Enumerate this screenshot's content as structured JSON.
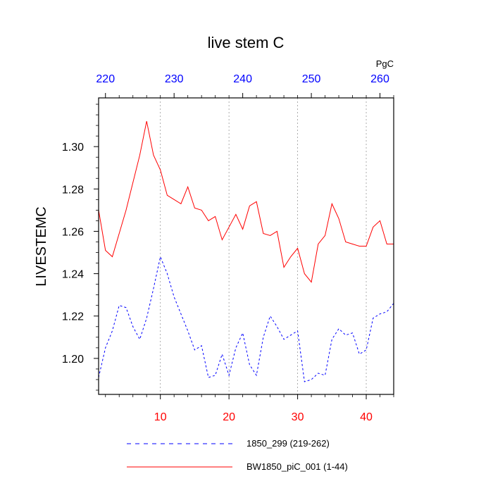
{
  "chart_data": {
    "type": "line",
    "title": "live stem C",
    "ylabel": "LIVESTEMC",
    "units": "PgC",
    "xlim": [
      1,
      44
    ],
    "ylim": [
      1.183,
      1.323
    ],
    "yticks": [
      1.2,
      1.22,
      1.24,
      1.26,
      1.28,
      1.3
    ],
    "ytick_labels": [
      "1.20",
      "1.22",
      "1.24",
      "1.26",
      "1.28",
      "1.30"
    ],
    "bottom_xticks": [
      10,
      20,
      30,
      40
    ],
    "bottom_xtick_labels": [
      "10",
      "20",
      "30",
      "40"
    ],
    "bottom_axis_color": "#ff0000",
    "top_axis_offset": 218,
    "top_xticks": [
      220,
      230,
      240,
      250,
      260
    ],
    "top_xtick_labels": [
      "220",
      "230",
      "240",
      "250",
      "260"
    ],
    "top_axis_color": "#0000ff",
    "series": [
      {
        "name": "1850_299 (219-262)",
        "color": "#0000ff",
        "dash": "dashed",
        "x": [
          1,
          2,
          3,
          4,
          5,
          6,
          7,
          8,
          9,
          10,
          11,
          12,
          13,
          14,
          15,
          16,
          17,
          18,
          19,
          20,
          21,
          22,
          23,
          24,
          25,
          26,
          27,
          28,
          29,
          30,
          31,
          32,
          33,
          34,
          35,
          36,
          37,
          38,
          39,
          40,
          41,
          42,
          43,
          44
        ],
        "values": [
          1.191,
          1.205,
          1.213,
          1.225,
          1.224,
          1.215,
          1.209,
          1.219,
          1.233,
          1.248,
          1.24,
          1.229,
          1.221,
          1.213,
          1.204,
          1.206,
          1.191,
          1.192,
          1.202,
          1.192,
          1.205,
          1.212,
          1.197,
          1.192,
          1.21,
          1.22,
          1.215,
          1.209,
          1.211,
          1.213,
          1.189,
          1.19,
          1.193,
          1.192,
          1.209,
          1.214,
          1.211,
          1.212,
          1.202,
          1.204,
          1.219,
          1.221,
          1.222,
          1.226
        ]
      },
      {
        "name": "BW1850_piC_001 (1-44)",
        "color": "#ff0000",
        "dash": "solid",
        "x": [
          1,
          2,
          3,
          4,
          5,
          6,
          7,
          8,
          9,
          10,
          11,
          12,
          13,
          14,
          15,
          16,
          17,
          18,
          19,
          20,
          21,
          22,
          23,
          24,
          25,
          26,
          27,
          28,
          29,
          30,
          31,
          32,
          33,
          34,
          35,
          36,
          37,
          38,
          39,
          40,
          41,
          42,
          43,
          44
        ],
        "values": [
          1.27,
          1.251,
          1.248,
          1.259,
          1.27,
          1.283,
          1.296,
          1.312,
          1.296,
          1.289,
          1.277,
          1.275,
          1.273,
          1.281,
          1.271,
          1.27,
          1.265,
          1.267,
          1.256,
          1.262,
          1.268,
          1.261,
          1.272,
          1.274,
          1.259,
          1.258,
          1.26,
          1.243,
          1.248,
          1.252,
          1.24,
          1.236,
          1.254,
          1.258,
          1.273,
          1.266,
          1.255,
          1.254,
          1.253,
          1.253,
          1.262,
          1.265,
          1.254,
          1.254
        ]
      }
    ]
  }
}
